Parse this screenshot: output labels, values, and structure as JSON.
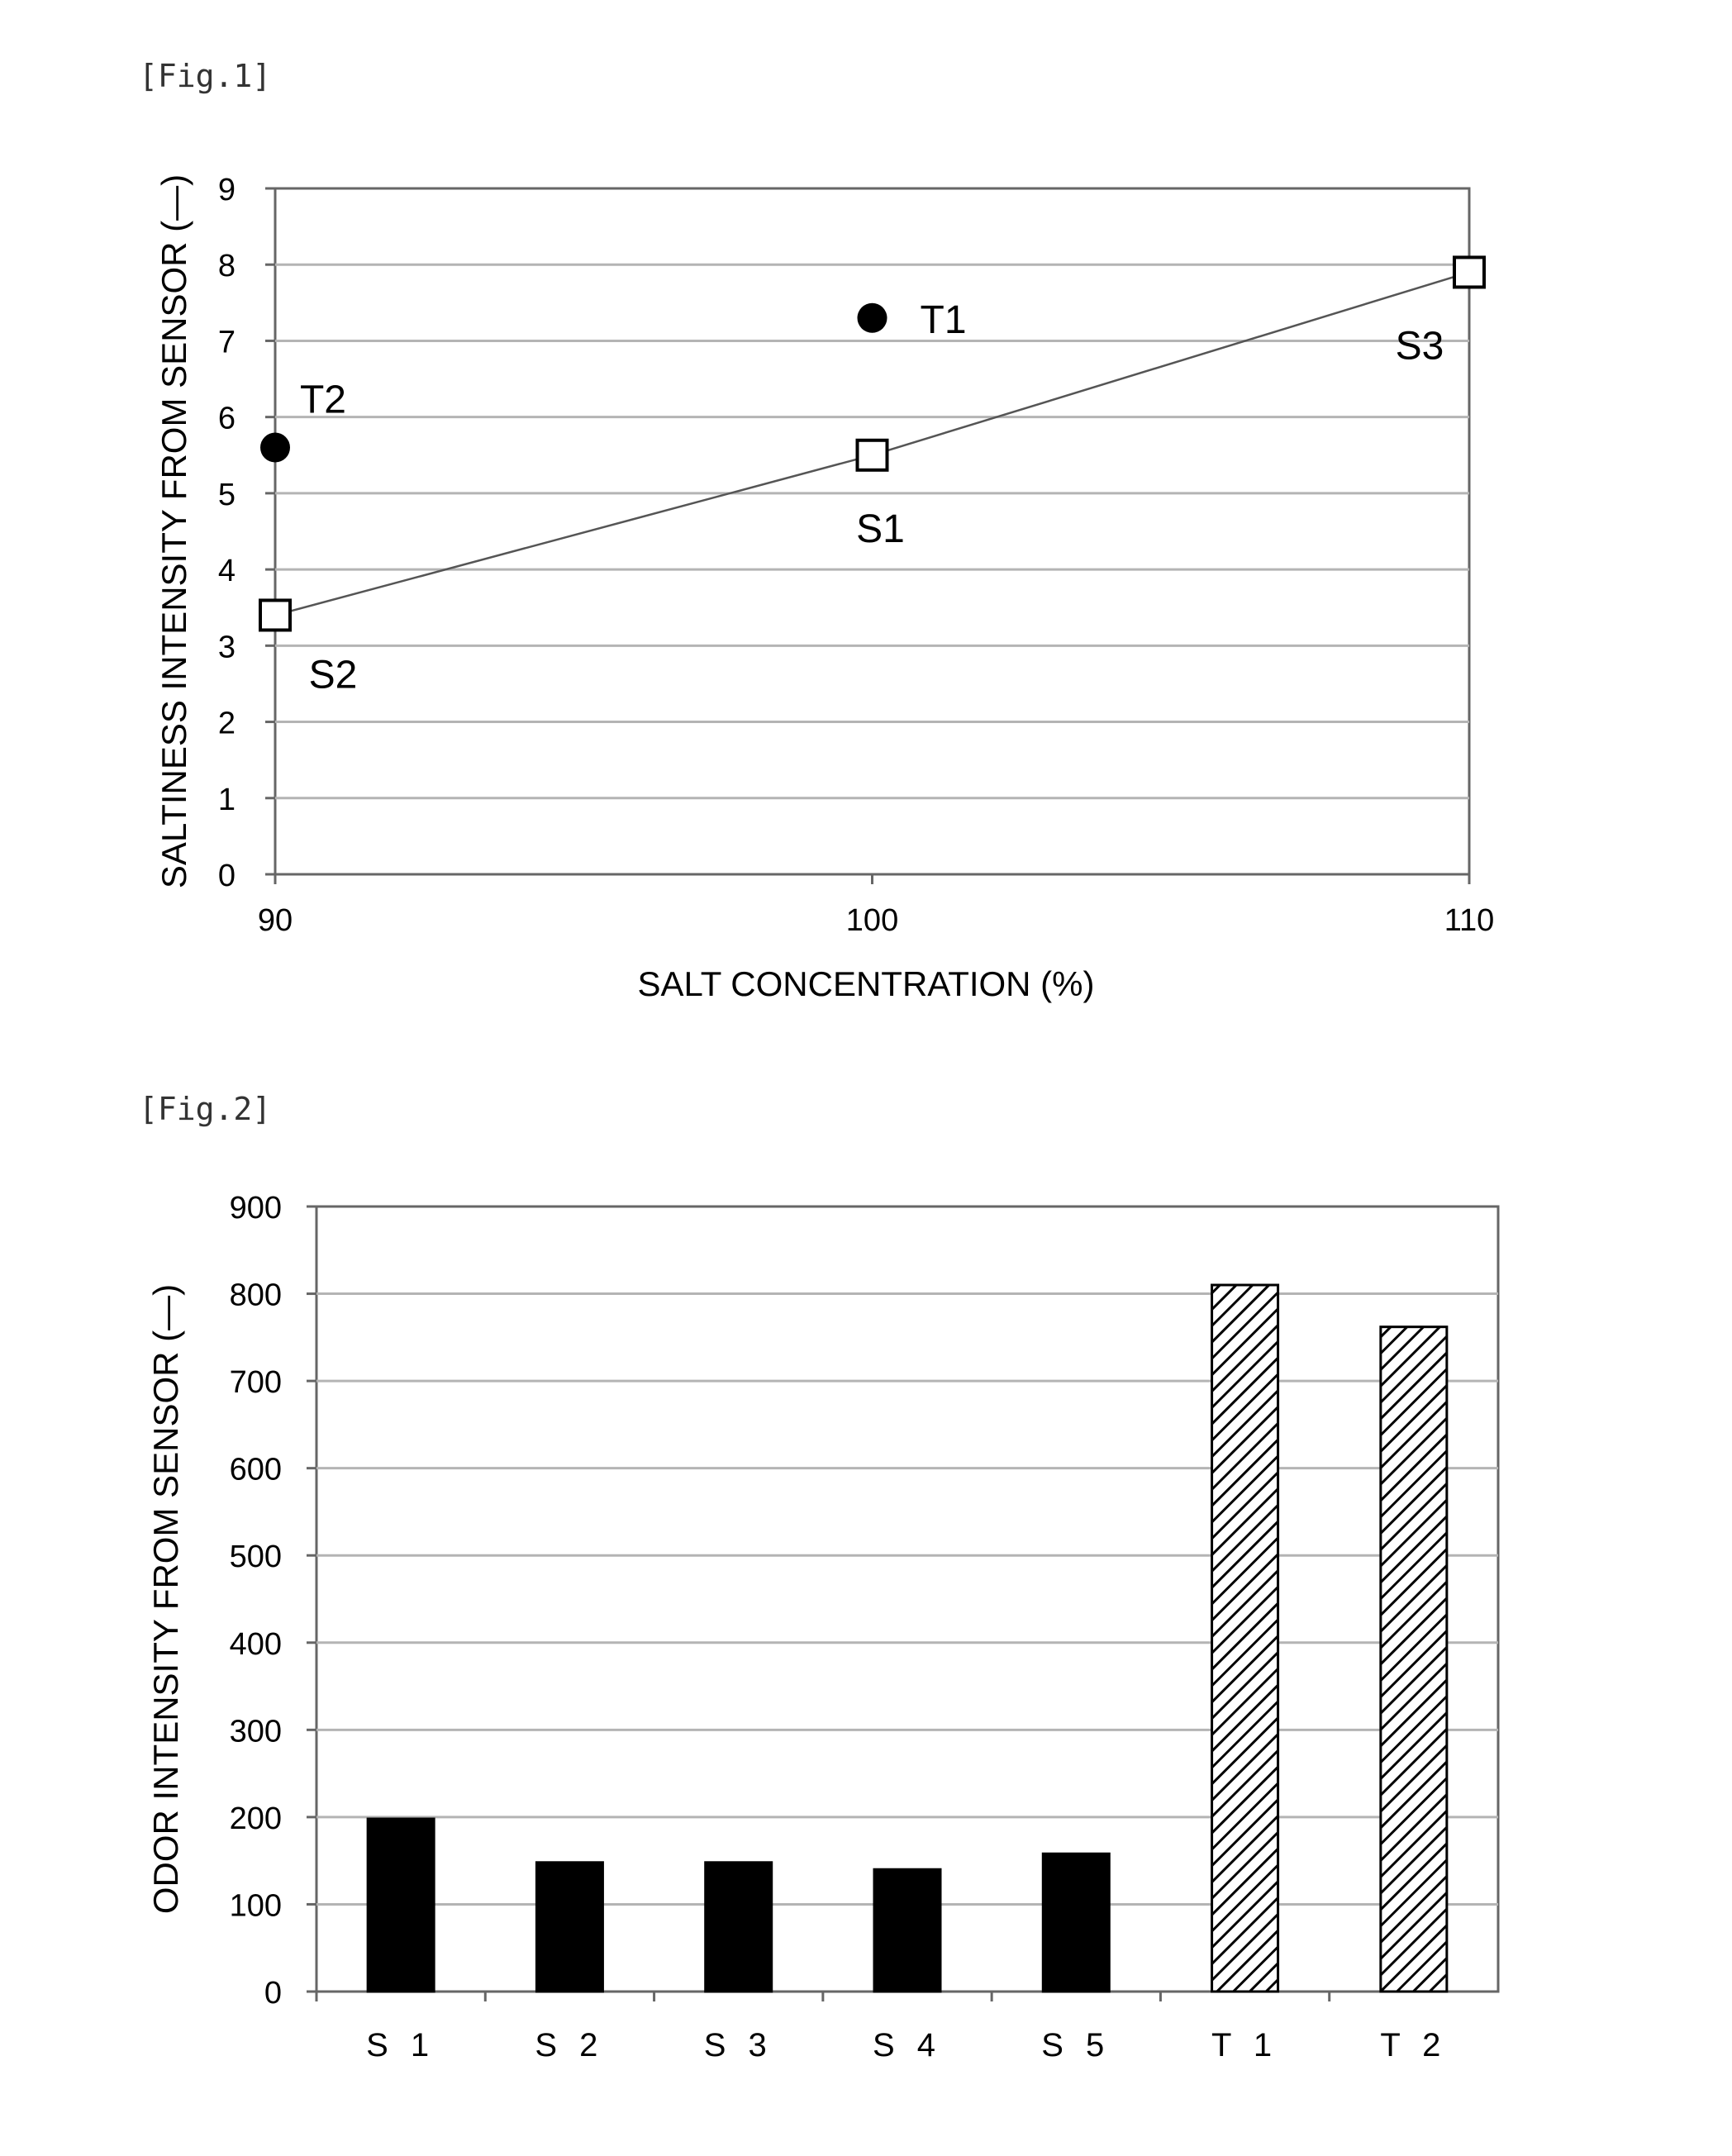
{
  "figures": [
    {
      "label": "[Fig.1]"
    },
    {
      "label": "[Fig.2]"
    }
  ],
  "chart_data": [
    {
      "type": "scatter",
      "title": "",
      "xlabel": "SALT CONCENTRATION (%)",
      "ylabel": "SALTINESS INTENSITY FROM SENSOR (—)",
      "xlim": [
        90,
        110
      ],
      "ylim": [
        0,
        9
      ],
      "xticks": [
        "90",
        "100",
        "110"
      ],
      "yticks": [
        "0",
        "1",
        "2",
        "3",
        "4",
        "5",
        "6",
        "7",
        "8",
        "9"
      ],
      "grid": true,
      "series": [
        {
          "marker": "open-square",
          "connected": true,
          "points": [
            {
              "label": "S2",
              "x": 90,
              "y": 3.4
            },
            {
              "label": "S1",
              "x": 100,
              "y": 5.5
            },
            {
              "label": "S3",
              "x": 110,
              "y": 7.9
            }
          ]
        },
        {
          "marker": "filled-circle",
          "connected": false,
          "points": [
            {
              "label": "T2",
              "x": 90,
              "y": 5.6
            },
            {
              "label": "T1",
              "x": 100,
              "y": 7.3
            }
          ]
        }
      ]
    },
    {
      "type": "bar",
      "title": "",
      "xlabel": "",
      "ylabel": "ODOR INTENSITY FROM SENSOR (—)",
      "ylim": [
        0,
        900
      ],
      "yticks": [
        "0",
        "100",
        "200",
        "300",
        "400",
        "500",
        "600",
        "700",
        "800",
        "900"
      ],
      "grid": true,
      "categories": [
        "S 1",
        "S 2",
        "S 3",
        "S 4",
        "S 5",
        "T 1",
        "T 2"
      ],
      "values": [
        198,
        148,
        148,
        140,
        158,
        810,
        762
      ],
      "fills": [
        "solid",
        "solid",
        "solid",
        "solid",
        "solid",
        "hatched",
        "hatched"
      ]
    }
  ],
  "colors": {
    "ink": "#000000",
    "grid": "#b4b4b4",
    "background": "#ffffff"
  }
}
